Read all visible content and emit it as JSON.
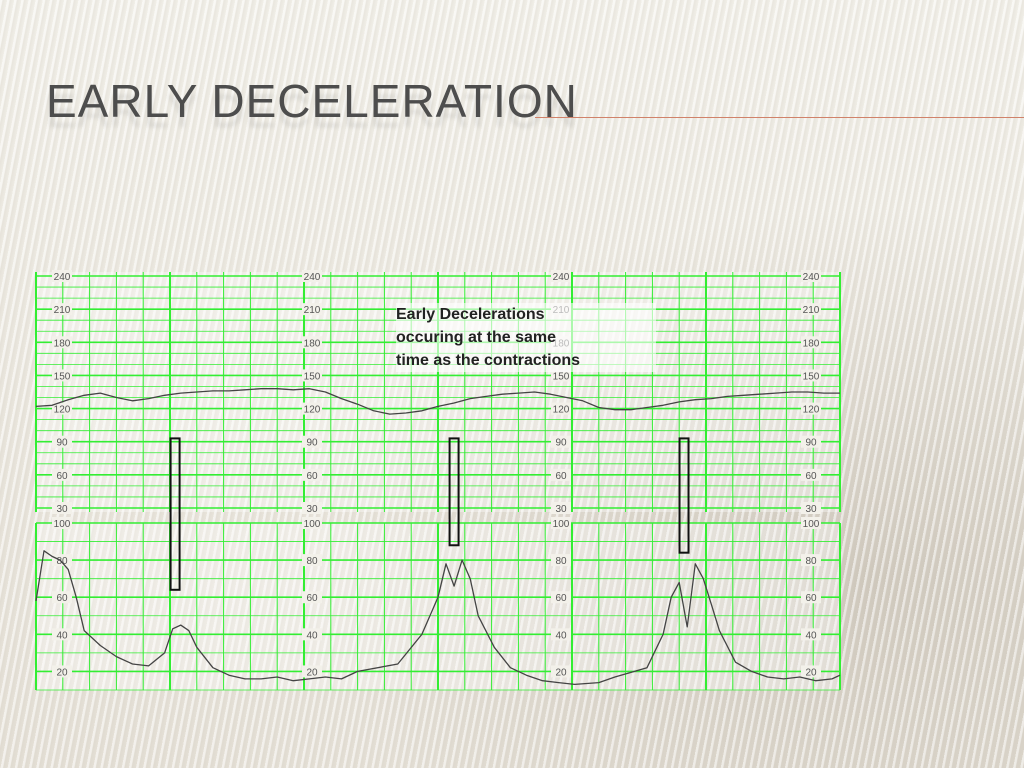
{
  "slide": {
    "title": "EARLY DECELERATION",
    "accent_color": "#d0826a"
  },
  "chart_data": {
    "type": "line",
    "title": "",
    "grid": true,
    "grid_color": "#33ee33",
    "trace_color": "#444444",
    "annotation": {
      "lines": [
        "Early Decelerations",
        "occuring at the same",
        "time as the contractions"
      ]
    },
    "fhr_panel": {
      "ylabel": "",
      "ylim": [
        30,
        240
      ],
      "ticks": [
        240,
        210,
        180,
        150,
        120,
        90,
        60,
        30
      ],
      "tick_columns": 4,
      "x": [
        0,
        2,
        4,
        6,
        8,
        10,
        12,
        14,
        16,
        18,
        20,
        22,
        24,
        26,
        28,
        30,
        32,
        34,
        36,
        38,
        40,
        42,
        44,
        46,
        48,
        50,
        52,
        54,
        56,
        58,
        60,
        62,
        64,
        66,
        68,
        70,
        72,
        74,
        76,
        78,
        80,
        82,
        84,
        86,
        88,
        90,
        92,
        94,
        96,
        98,
        100
      ],
      "values": [
        122,
        123,
        128,
        132,
        134,
        130,
        127,
        129,
        132,
        134,
        135,
        136,
        136,
        137,
        138,
        138,
        137,
        138,
        135,
        129,
        124,
        118,
        115,
        116,
        118,
        122,
        125,
        129,
        131,
        133,
        134,
        135,
        133,
        130,
        127,
        121,
        119,
        119,
        121,
        123,
        126,
        128,
        129,
        131,
        132,
        133,
        134,
        135,
        135,
        134,
        134
      ]
    },
    "uc_panel": {
      "ylabel": "",
      "ylim": [
        10,
        100
      ],
      "ticks": [
        100,
        80,
        60,
        40,
        20
      ],
      "tick_columns": 4,
      "x": [
        0,
        1,
        2,
        3,
        4,
        5,
        6,
        8,
        10,
        12,
        14,
        16,
        17,
        18,
        19,
        20,
        22,
        24,
        26,
        28,
        30,
        32,
        34,
        36,
        38,
        40,
        45,
        48,
        50,
        51,
        52,
        53,
        54,
        55,
        57,
        59,
        61,
        63,
        65,
        67,
        70,
        72,
        76,
        78,
        79,
        80,
        81,
        82,
        83,
        84,
        85,
        87,
        89,
        91,
        93,
        95,
        97,
        99,
        100
      ],
      "values": [
        58,
        85,
        82,
        80,
        75,
        60,
        42,
        34,
        28,
        24,
        23,
        30,
        43,
        45,
        42,
        33,
        22,
        18,
        16,
        16,
        17,
        15,
        16,
        17,
        16,
        20,
        24,
        40,
        60,
        78,
        66,
        80,
        70,
        50,
        33,
        22,
        18,
        15,
        14,
        13,
        14,
        17,
        22,
        40,
        60,
        68,
        44,
        78,
        70,
        56,
        42,
        25,
        20,
        17,
        16,
        17,
        15,
        16,
        18
      ]
    },
    "marker_boxes": [
      {
        "x": 17.3,
        "from_fhr": 93,
        "to_uc": 64
      },
      {
        "x": 52,
        "from_fhr": 93,
        "to_uc": 88
      },
      {
        "x": 80.6,
        "from_fhr": 93,
        "to_uc": 84
      }
    ]
  }
}
